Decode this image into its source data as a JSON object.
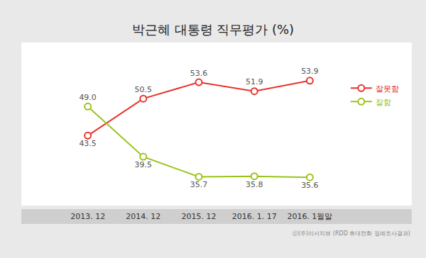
{
  "chart_data": {
    "type": "line",
    "title": "박근혜 대통령 직무평가 (%)",
    "source": "ⓒ(주)리서치뷰 (RDD 휴대전화 정례조사결과)",
    "categories": [
      "2013. 12",
      "2014. 12",
      "2015. 12",
      "2016. 1. 17",
      "2016. 1월말"
    ],
    "series": [
      {
        "name": "잘못함",
        "color": "#e8322b",
        "values": [
          43.5,
          50.5,
          53.6,
          51.9,
          53.9
        ],
        "value_labels": [
          "43.5",
          "50.5",
          "53.6",
          "51.9",
          "53.9"
        ]
      },
      {
        "name": "잘함",
        "color": "#9bc31b",
        "values": [
          49.0,
          39.5,
          35.7,
          35.8,
          35.6
        ],
        "value_labels": [
          "49.0",
          "39.5",
          "35.7",
          "35.8",
          "35.6"
        ]
      }
    ],
    "marker": "open-circle",
    "data_labels": true,
    "grid": false,
    "legend": "right",
    "tick_labels": "x"
  }
}
